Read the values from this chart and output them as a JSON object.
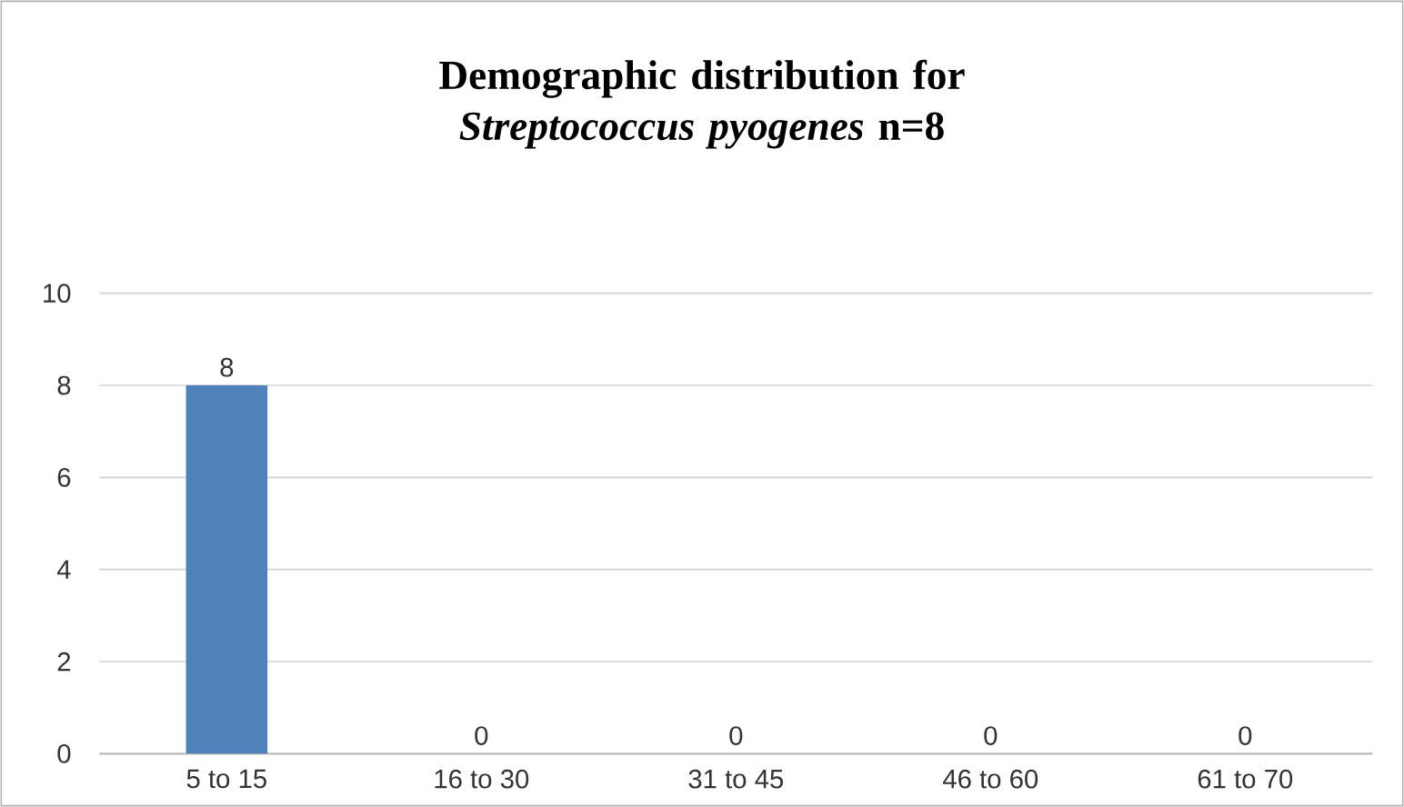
{
  "chart_data": {
    "type": "bar",
    "title": "Demographic distribution for *Streptococcus pyogenes* n=8",
    "categories": [
      "5 to 15",
      "16 to 30",
      "31 to 45",
      "46 to 60",
      "61 to 70"
    ],
    "values": [
      8,
      0,
      0,
      0,
      0
    ],
    "color": "#4f81bd",
    "ylim": [
      0,
      10
    ],
    "yticks": [
      0,
      2,
      4,
      6,
      8,
      10
    ],
    "grid": "y",
    "data_labels": true
  }
}
